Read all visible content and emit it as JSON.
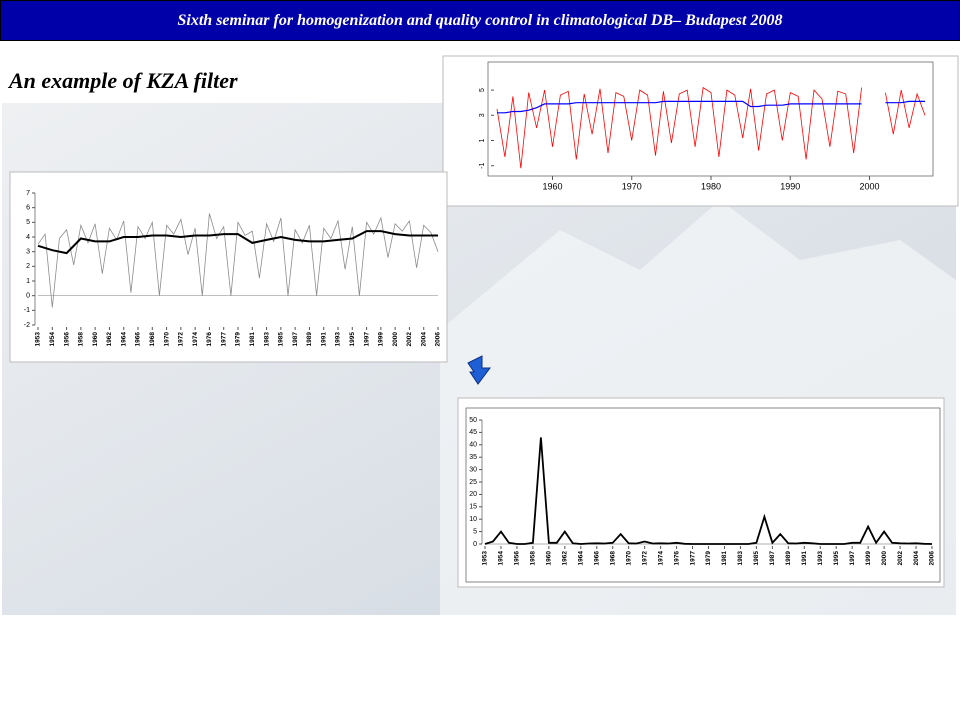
{
  "header": {
    "title": "Sixth seminar for homogenization and quality control  in climatological DB– Budapest 2008"
  },
  "slide_title": "An example of KZA filter",
  "chart_data": [
    {
      "type": "line",
      "xlim": [
        1953,
        2007
      ],
      "ylim": [
        -1.5,
        5.8
      ],
      "xticks": [
        1960,
        1970,
        1980,
        1990,
        2000
      ],
      "yticks": [
        -1,
        1,
        3,
        5
      ],
      "series": [
        {
          "color": "#ff0000",
          "x": [
            1953,
            1954,
            1955,
            1956,
            1957,
            1958,
            1959,
            1960,
            1961,
            1962,
            1963,
            1964,
            1965,
            1966,
            1967,
            1968,
            1969,
            1970,
            1971,
            1972,
            1973,
            1974,
            1975,
            1976,
            1977,
            1978,
            1979,
            1980,
            1981,
            1982,
            1983,
            1984,
            1985,
            1986,
            1987,
            1988,
            1989,
            1990,
            1991,
            1992,
            1993,
            1994,
            1995,
            1996,
            1997,
            1998,
            1999,
            2000,
            2001,
            2002,
            2003,
            2004,
            2005,
            2006,
            2007
          ],
          "values": [
            3.5,
            -0.3,
            4.5,
            -1.2,
            4.8,
            2.0,
            5.0,
            0.5,
            4.6,
            4.9,
            -0.5,
            4.7,
            1.5,
            5.1,
            0.0,
            4.8,
            4.5,
            1.0,
            5.0,
            4.6,
            -0.2,
            4.9,
            0.8,
            4.7,
            5.0,
            0.5,
            5.2,
            4.8,
            -0.3,
            5.0,
            4.6,
            1.2,
            5.1,
            0.2,
            4.7,
            5.0,
            1.0,
            4.8,
            4.5,
            -0.5,
            5.0,
            4.3,
            0.5,
            4.9,
            4.7,
            0.0,
            5.2,
            null,
            null,
            4.8,
            1.5,
            5.0,
            2.0,
            4.7,
            3.0
          ]
        },
        {
          "color": "#0000ff",
          "x": [
            1953,
            1954,
            1955,
            1956,
            1957,
            1958,
            1959,
            1960,
            1961,
            1962,
            1963,
            1964,
            1965,
            1966,
            1967,
            1968,
            1969,
            1970,
            1971,
            1972,
            1973,
            1974,
            1975,
            1976,
            1977,
            1978,
            1979,
            1980,
            1981,
            1982,
            1983,
            1984,
            1985,
            1986,
            1987,
            1988,
            1989,
            1990,
            1991,
            1992,
            1993,
            1994,
            1995,
            1996,
            1997,
            1998,
            1999,
            2000,
            2001,
            2002,
            2003,
            2004,
            2005,
            2006,
            2007
          ],
          "values": [
            3.2,
            3.2,
            3.3,
            3.3,
            3.4,
            3.6,
            3.9,
            3.9,
            3.9,
            3.9,
            4.0,
            4.0,
            4.0,
            4.0,
            4.0,
            4.0,
            4.0,
            4.0,
            4.0,
            4.0,
            4.0,
            4.1,
            4.1,
            4.1,
            4.1,
            4.1,
            4.1,
            4.1,
            4.1,
            4.1,
            4.1,
            4.1,
            3.7,
            3.7,
            3.8,
            3.8,
            3.8,
            3.9,
            3.9,
            3.9,
            3.9,
            3.9,
            3.9,
            3.9,
            3.9,
            3.9,
            3.9,
            null,
            null,
            4.0,
            4.0,
            4.0,
            4.1,
            4.1,
            4.1
          ]
        }
      ]
    },
    {
      "type": "line",
      "xlim": [
        0,
        28
      ],
      "ylim": [
        -2,
        7
      ],
      "xticks": [
        {
          "value": 0,
          "label": "1953"
        },
        {
          "value": 1,
          "label": "1954"
        },
        {
          "value": 2,
          "label": "1956"
        },
        {
          "value": 3,
          "label": "1958"
        },
        {
          "value": 4,
          "label": "1960"
        },
        {
          "value": 5,
          "label": "1962"
        },
        {
          "value": 6,
          "label": "1964"
        },
        {
          "value": 7,
          "label": "1966"
        },
        {
          "value": 8,
          "label": "1968"
        },
        {
          "value": 9,
          "label": "1970"
        },
        {
          "value": 10,
          "label": "1972"
        },
        {
          "value": 11,
          "label": "1974"
        },
        {
          "value": 12,
          "label": "1976"
        },
        {
          "value": 13,
          "label": "1977"
        },
        {
          "value": 14,
          "label": "1979"
        },
        {
          "value": 15,
          "label": "1981"
        },
        {
          "value": 16,
          "label": "1983"
        },
        {
          "value": 17,
          "label": "1985"
        },
        {
          "value": 18,
          "label": "1987"
        },
        {
          "value": 19,
          "label": "1989"
        },
        {
          "value": 20,
          "label": "1991"
        },
        {
          "value": 21,
          "label": "1993"
        },
        {
          "value": 22,
          "label": "1995"
        },
        {
          "value": 23,
          "label": "1997"
        },
        {
          "value": 24,
          "label": "1999"
        },
        {
          "value": 25,
          "label": "2000"
        },
        {
          "value": 26,
          "label": "2002"
        },
        {
          "value": 27,
          "label": "2004"
        },
        {
          "value": 28,
          "label": "2006"
        }
      ],
      "yticks": [
        -2,
        -1,
        0,
        1,
        2,
        3,
        4,
        5,
        6,
        7
      ],
      "series": [
        {
          "color": "#8c8c8c",
          "x": [
            0,
            0.5,
            1,
            1.5,
            2,
            2.5,
            3,
            3.5,
            4,
            4.5,
            5,
            5.5,
            6,
            6.5,
            7,
            7.5,
            8,
            8.5,
            9,
            9.5,
            10,
            10.5,
            11,
            11.5,
            12,
            12.5,
            13,
            13.5,
            14,
            14.5,
            15,
            15.5,
            16,
            16.5,
            17,
            17.5,
            18,
            18.5,
            19,
            19.5,
            20,
            20.5,
            21,
            21.5,
            22,
            22.5,
            23,
            23.5,
            24,
            24.5,
            25,
            25.5,
            26,
            26.5,
            27,
            27.5,
            28
          ],
          "values": [
            3.5,
            4.2,
            -0.8,
            3.9,
            4.5,
            2.1,
            4.8,
            3.6,
            4.9,
            1.5,
            4.6,
            3.8,
            5.1,
            0.2,
            4.7,
            3.9,
            5.0,
            0.0,
            4.8,
            4.2,
            5.2,
            2.8,
            4.6,
            0.0,
            5.6,
            3.9,
            4.7,
            0.0,
            5.0,
            4.1,
            4.4,
            1.2,
            4.9,
            3.7,
            5.3,
            0.0,
            4.5,
            3.6,
            4.8,
            0.0,
            4.6,
            3.9,
            5.1,
            1.8,
            4.7,
            0.0,
            5.0,
            4.2,
            5.3,
            2.6,
            4.9,
            4.4,
            5.1,
            1.9,
            4.8,
            4.3,
            3.0
          ]
        },
        {
          "color": "#000000",
          "x": [
            0,
            1,
            2,
            3,
            4,
            5,
            6,
            7,
            8,
            9,
            10,
            11,
            12,
            13,
            14,
            15,
            16,
            17,
            18,
            19,
            20,
            21,
            22,
            23,
            24,
            25,
            26,
            27,
            28
          ],
          "values": [
            3.4,
            3.1,
            2.9,
            3.9,
            3.7,
            3.7,
            4.0,
            4.0,
            4.1,
            4.1,
            4.0,
            4.1,
            4.1,
            4.2,
            4.2,
            3.6,
            3.8,
            4.0,
            3.8,
            3.7,
            3.7,
            3.8,
            3.9,
            4.4,
            4.4,
            4.2,
            4.1,
            4.1,
            4.1
          ]
        }
      ]
    },
    {
      "type": "line",
      "xlim": [
        0,
        28
      ],
      "ylim": [
        0,
        50
      ],
      "xticks": [
        {
          "value": 0,
          "label": "1953"
        },
        {
          "value": 1,
          "label": "1954"
        },
        {
          "value": 2,
          "label": "1956"
        },
        {
          "value": 3,
          "label": "1958"
        },
        {
          "value": 4,
          "label": "1960"
        },
        {
          "value": 5,
          "label": "1962"
        },
        {
          "value": 6,
          "label": "1964"
        },
        {
          "value": 7,
          "label": "1966"
        },
        {
          "value": 8,
          "label": "1968"
        },
        {
          "value": 9,
          "label": "1970"
        },
        {
          "value": 10,
          "label": "1972"
        },
        {
          "value": 11,
          "label": "1974"
        },
        {
          "value": 12,
          "label": "1976"
        },
        {
          "value": 13,
          "label": "1977"
        },
        {
          "value": 14,
          "label": "1979"
        },
        {
          "value": 15,
          "label": "1981"
        },
        {
          "value": 16,
          "label": "1983"
        },
        {
          "value": 17,
          "label": "1985"
        },
        {
          "value": 18,
          "label": "1987"
        },
        {
          "value": 19,
          "label": "1989"
        },
        {
          "value": 20,
          "label": "1991"
        },
        {
          "value": 21,
          "label": "1993"
        },
        {
          "value": 22,
          "label": "1995"
        },
        {
          "value": 23,
          "label": "1997"
        },
        {
          "value": 24,
          "label": "1999"
        },
        {
          "value": 25,
          "label": "2000"
        },
        {
          "value": 26,
          "label": "2002"
        },
        {
          "value": 27,
          "label": "2004"
        },
        {
          "value": 28,
          "label": "2006"
        }
      ],
      "yticks": [
        0,
        5,
        10,
        15,
        20,
        25,
        30,
        35,
        40,
        45,
        50
      ],
      "series": [
        {
          "color": "#000000",
          "x": [
            0,
            0.5,
            1,
            1.5,
            2,
            2.5,
            3,
            3.5,
            4,
            4.5,
            5,
            5.5,
            6,
            6.5,
            7,
            7.5,
            8,
            8.5,
            9,
            9.5,
            10,
            10.5,
            11,
            11.5,
            12,
            12.5,
            13,
            13.5,
            14,
            14.5,
            15,
            15.5,
            16,
            16.5,
            17,
            17.5,
            18,
            18.5,
            19,
            19.5,
            20,
            20.5,
            21,
            21.5,
            22,
            22.5,
            23,
            23.5,
            24,
            24.5,
            25,
            25.5,
            26,
            26.5,
            27,
            27.5,
            28
          ],
          "values": [
            0,
            1,
            5,
            0.5,
            0,
            0,
            0.5,
            43,
            0.5,
            0.5,
            5,
            0.3,
            0,
            0.2,
            0.3,
            0.2,
            0.5,
            4,
            0.3,
            0.2,
            1,
            0.2,
            0.3,
            0.2,
            0.5,
            0.1,
            0,
            0,
            0,
            0,
            0,
            0,
            0,
            0,
            0.5,
            11,
            0.5,
            4,
            0.3,
            0.2,
            0.5,
            0.3,
            0,
            0,
            0,
            0,
            0.5,
            0.5,
            7,
            0.5,
            5,
            0.5,
            0.3,
            0.2,
            0.3,
            0.1,
            0
          ]
        }
      ]
    }
  ]
}
